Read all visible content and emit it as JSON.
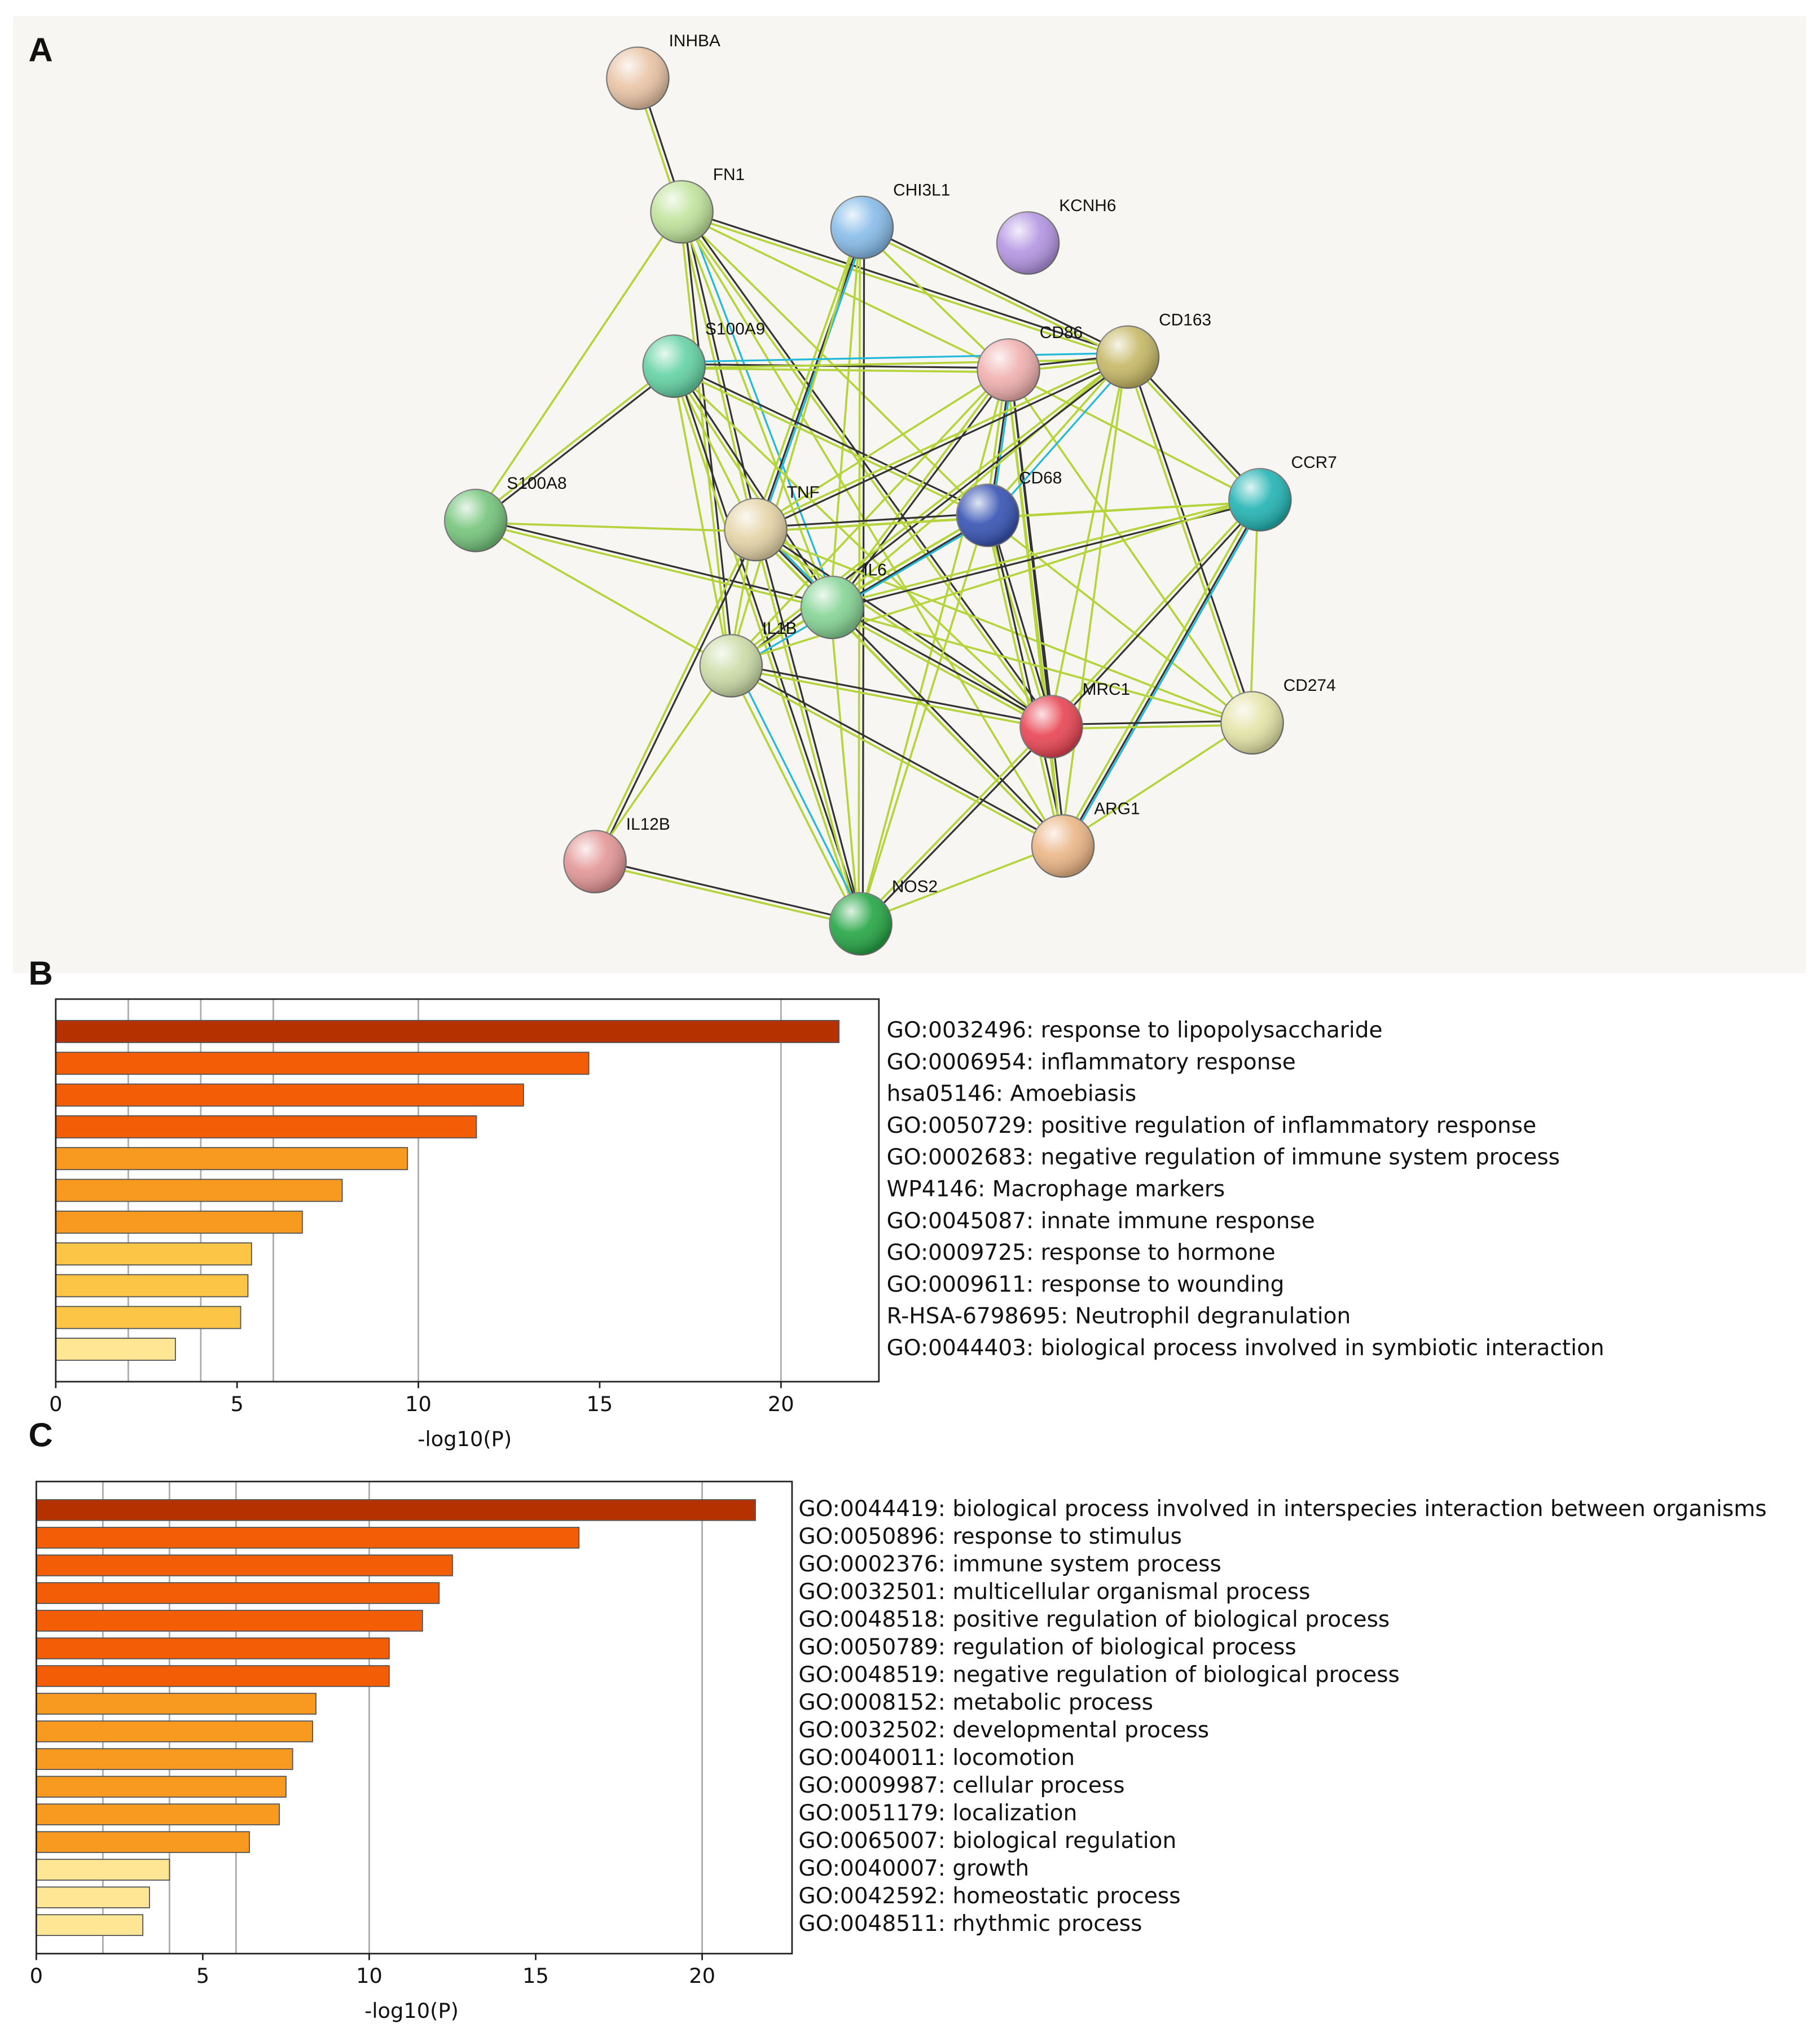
{
  "panel_labels": [
    "A",
    "B",
    "C"
  ],
  "network": {
    "nodes": [
      {
        "label": "INHBA",
        "color": "#e9c3a4"
      },
      {
        "label": "FN1",
        "color": "#bfe39a"
      },
      {
        "label": "CHI3L1",
        "color": "#86bbe8"
      },
      {
        "label": "KCNH6",
        "color": "#b394e2"
      },
      {
        "label": "S100A9",
        "color": "#63d2a3"
      },
      {
        "label": "CD86",
        "color": "#f0aeae"
      },
      {
        "label": "CD163",
        "color": "#c6b765"
      },
      {
        "label": "S100A8",
        "color": "#74c47a"
      },
      {
        "label": "TNF",
        "color": "#e4d3a6"
      },
      {
        "label": "CD68",
        "color": "#3552b2"
      },
      {
        "label": "CCR7",
        "color": "#22b3b3"
      },
      {
        "label": "IL6",
        "color": "#84d394"
      },
      {
        "label": "IL1B",
        "color": "#cbdba6"
      },
      {
        "label": "MRC1",
        "color": "#e84452"
      },
      {
        "label": "CD274",
        "color": "#e3e3a6"
      },
      {
        "label": "IL12B",
        "color": "#e39595"
      },
      {
        "label": "ARG1",
        "color": "#ebb586"
      },
      {
        "label": "NOS2",
        "color": "#24a544"
      }
    ]
  },
  "chart_data": [
    {
      "type": "barh",
      "xlabel": "-log10(P)",
      "categories": [
        "GO:0032496: response to lipopolysaccharide",
        "GO:0006954: inflammatory response",
        "hsa05146: Amoebiasis",
        "GO:0050729: positive regulation of inflammatory response",
        "GO:0002683: negative regulation of immune system process",
        "WP4146: Macrophage markers",
        "GO:0045087: innate immune response",
        "GO:0009725: response to hormone",
        "GO:0009611: response to wounding",
        "R-HSA-6798695: Neutrophil degranulation",
        "GO:0044403: biological process involved in symbiotic interaction"
      ],
      "values": [
        21.6,
        14.7,
        12.9,
        11.6,
        9.7,
        7.9,
        6.8,
        5.4,
        5.3,
        5.1,
        3.3
      ],
      "colors": [
        "#b53200",
        "#f35d06",
        "#f35d06",
        "#f35d06",
        "#f89a20",
        "#f89a20",
        "#f89a20",
        "#fdc545",
        "#fdc545",
        "#fdc545",
        "#fee695"
      ],
      "xlim": [
        0,
        22.7
      ],
      "xticks": [
        0,
        5,
        10,
        15,
        20
      ],
      "gridlines": [
        2,
        4,
        6,
        10,
        20
      ]
    },
    {
      "type": "barh",
      "xlabel": "-log10(P)",
      "categories": [
        "GO:0044419: biological process involved in interspecies interaction between organisms",
        "GO:0050896: response to stimulus",
        "GO:0002376: immune system process",
        "GO:0032501: multicellular organismal process",
        "GO:0048518: positive regulation of biological process",
        "GO:0050789: regulation of biological process",
        "GO:0048519: negative regulation of biological process",
        "GO:0008152: metabolic process",
        "GO:0032502: developmental process",
        "GO:0040011: locomotion",
        "GO:0009987: cellular process",
        "GO:0051179: localization",
        "GO:0065007: biological regulation",
        "GO:0040007: growth",
        "GO:0042592: homeostatic process",
        "GO:0048511: rhythmic process"
      ],
      "values": [
        21.6,
        16.3,
        12.5,
        12.1,
        11.6,
        10.6,
        10.6,
        8.4,
        8.3,
        7.7,
        7.5,
        7.3,
        6.4,
        4.0,
        3.4,
        3.2
      ],
      "colors": [
        "#b53200",
        "#f35d06",
        "#f35d06",
        "#f35d06",
        "#f35d06",
        "#f35d06",
        "#f35d06",
        "#f89a20",
        "#f89a20",
        "#f89a20",
        "#f89a20",
        "#f89a20",
        "#f89a20",
        "#fee695",
        "#fee695",
        "#fee695"
      ],
      "xlim": [
        0,
        22.7
      ],
      "xticks": [
        0,
        5,
        10,
        15,
        20
      ],
      "gridlines": [
        2,
        4,
        6,
        10,
        20
      ]
    }
  ]
}
